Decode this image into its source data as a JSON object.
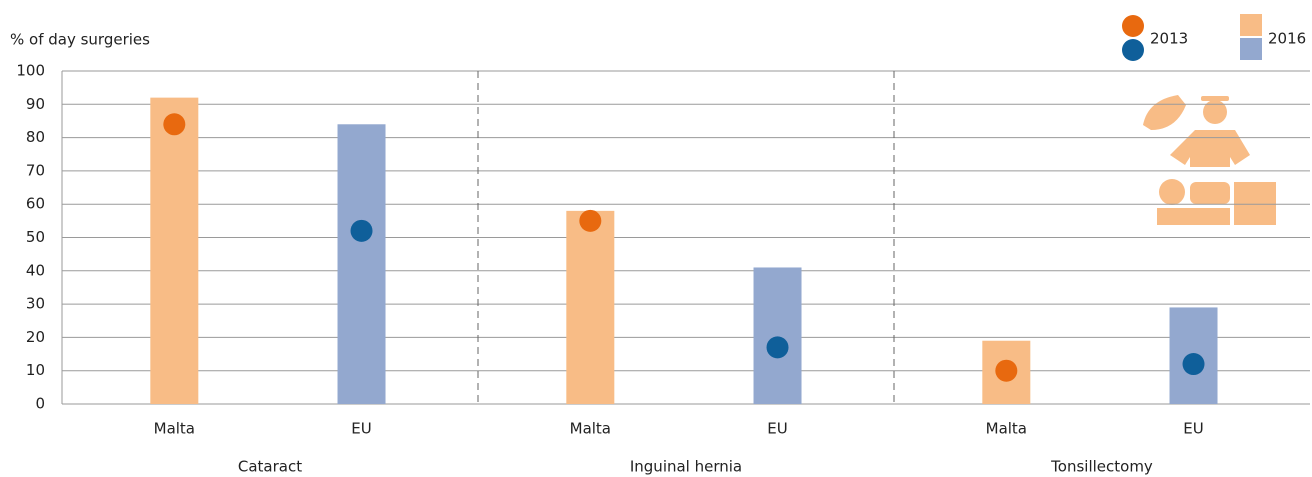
{
  "chart_data": {
    "type": "bar",
    "y_label": "% of day surgeries",
    "groups": [
      "Cataract",
      "Inguinal hernia",
      "Tonsillectomy"
    ],
    "categories": [
      "Malta",
      "EU",
      "Malta",
      "EU",
      "Malta",
      "EU"
    ],
    "series": [
      {
        "name": "2016",
        "type": "bar",
        "values": [
          92,
          84,
          58,
          41,
          19,
          29
        ],
        "colors": [
          "#f8bc86",
          "#93a8cf",
          "#f8bc86",
          "#93a8cf",
          "#f8bc86",
          "#93a8cf"
        ]
      },
      {
        "name": "2013",
        "type": "dot",
        "values": [
          84,
          52,
          55,
          17,
          10,
          12
        ],
        "colors": [
          "#e8690f",
          "#0f5f9a",
          "#e8690f",
          "#0f5f9a",
          "#e8690f",
          "#0f5f9a"
        ]
      }
    ],
    "ylim": [
      0,
      100
    ],
    "yticks": [
      0,
      10,
      20,
      30,
      40,
      50,
      60,
      70,
      80,
      90,
      100
    ],
    "grid": true
  }
}
